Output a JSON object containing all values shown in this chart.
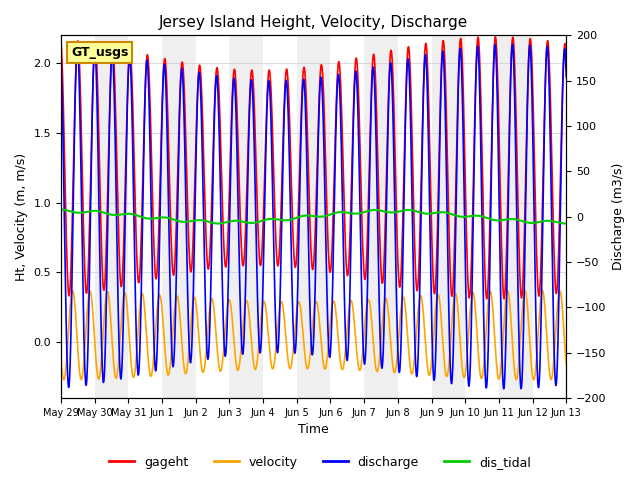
{
  "title": "Jersey Island Height, Velocity, Discharge",
  "xlabel": "Time",
  "ylabel_left": "Ht, Velocity (m, m/s)",
  "ylabel_right": "Discharge (m3/s)",
  "ylim_left": [
    -0.4,
    2.2
  ],
  "ylim_right": [
    -200,
    200
  ],
  "background_color": "#ffffff",
  "annotation_text": "GT_usgs",
  "annotation_facecolor": "#ffff99",
  "annotation_edgecolor": "#cc8800",
  "series_colors": {
    "gageht": "#ff0000",
    "velocity": "#ffa500",
    "discharge": "#0000ff",
    "dis_tidal": "#00cc00"
  },
  "series_linewidths": {
    "gageht": 1.2,
    "velocity": 1.2,
    "discharge": 1.2,
    "dis_tidal": 1.5
  },
  "legend_labels": [
    "gageht",
    "velocity",
    "discharge",
    "dis_tidal"
  ],
  "n_points": 3000,
  "tidal_period_hours": 12.4,
  "spring_neap_hours": 336,
  "xtick_labels": [
    "May 29",
    "May 30",
    "May 31",
    "Jun 1",
    "Jun 2",
    "Jun 3",
    "Jun 4",
    "Jun 5",
    "Jun 6",
    "Jun 7",
    "Jun 8",
    "Jun 9",
    "Jun 10",
    "Jun 11",
    "Jun 12",
    "Jun 13"
  ],
  "gray_band_alpha": 0.18,
  "gray_band_color": "#aaaaaa",
  "title_fontsize": 11,
  "label_fontsize": 9,
  "tick_fontsize": 8,
  "xtick_fontsize": 7
}
